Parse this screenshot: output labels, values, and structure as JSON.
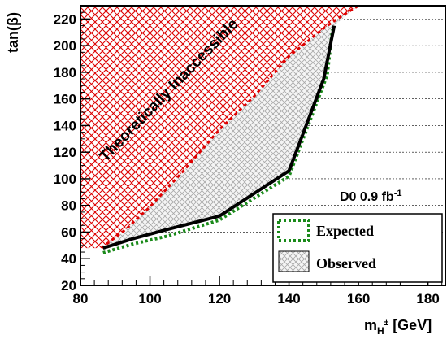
{
  "chart_data": {
    "type": "area",
    "experiment_label": "D0 0.9 fb",
    "experiment_label_sup": "-1",
    "region_label": "Theoretically Inaccessible",
    "xlabel_main": "m",
    "xlabel_sub": "H",
    "xlabel_sup": "±",
    "xlabel_unit": " [GeV]",
    "ylabel": "tan(β)",
    "xlim": [
      80,
      185
    ],
    "ylim": [
      20,
      230
    ],
    "x_ticks": [
      80,
      100,
      120,
      140,
      160,
      180
    ],
    "y_ticks": [
      20,
      40,
      60,
      80,
      100,
      120,
      140,
      160,
      180,
      200,
      220
    ],
    "grid": "horizontal dashed",
    "legend_position": "bottom-right",
    "colors": {
      "inaccessible": "#dd0000",
      "observed_fill": "#9a9a9a",
      "observed_line": "#000000",
      "expected_line": "#1a8a1a"
    },
    "theoretically_inaccessible_boundary": [
      [
        86,
        48
      ],
      [
        93,
        62
      ],
      [
        100,
        79
      ],
      [
        110,
        107
      ],
      [
        120,
        137
      ],
      [
        130,
        162
      ],
      [
        140,
        192
      ],
      [
        150,
        213
      ],
      [
        155,
        222
      ],
      [
        160,
        230
      ]
    ],
    "series": [
      {
        "name": "Observed",
        "x": [
          86.5,
          95,
          105,
          120,
          140,
          150,
          153
        ],
        "y": [
          48,
          55,
          62,
          72,
          106,
          175,
          215
        ]
      },
      {
        "name": "Expected",
        "x": [
          86.5,
          95,
          105,
          120,
          140,
          151,
          152.5
        ],
        "y": [
          44.5,
          51,
          57,
          69,
          102,
          178,
          212
        ]
      }
    ]
  }
}
